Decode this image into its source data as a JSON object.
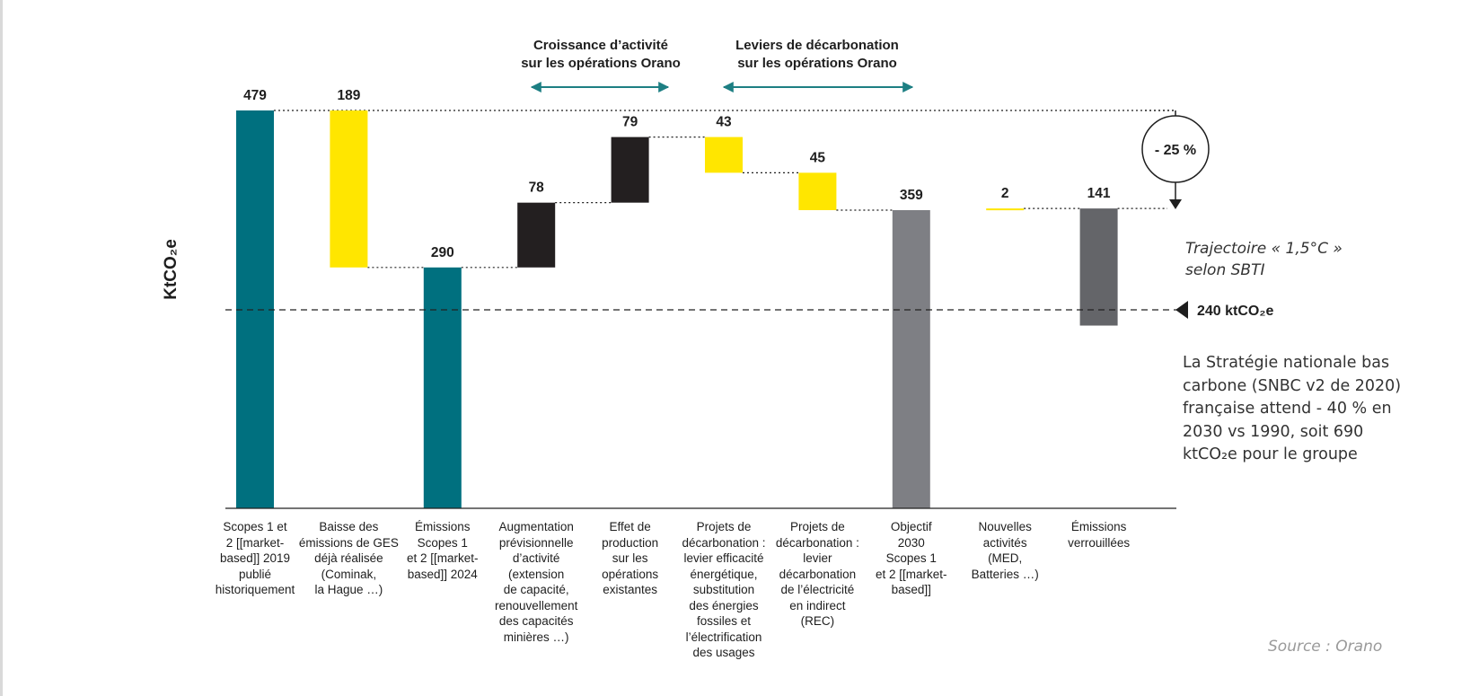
{
  "colors": {
    "teal": "#00707f",
    "yellow": "#ffe600",
    "black": "#231f20",
    "gray": "#7e7f84",
    "darkgray": "#646569",
    "arrowTeal": "#1d7f83"
  },
  "chart_data": {
    "type": "waterfall",
    "ylabel": "KtCO₂e",
    "series": [
      {
        "id": "scopes-2019",
        "value": 479,
        "label": "479",
        "base": 0,
        "top": 479,
        "color": "teal"
      },
      {
        "id": "baisse-ges",
        "value": 189,
        "label": "189",
        "base": 290,
        "top": 479,
        "color": "yellow"
      },
      {
        "id": "emissions-2024",
        "value": 290,
        "label": "290",
        "base": 0,
        "top": 290,
        "color": "teal"
      },
      {
        "id": "augmentation-activite",
        "value": 78,
        "label": "78",
        "base": 290,
        "top": 368,
        "color": "black"
      },
      {
        "id": "effet-production",
        "value": 79,
        "label": "79",
        "base": 368,
        "top": 447,
        "color": "black"
      },
      {
        "id": "efficacite-energetique",
        "value": 43,
        "label": "43",
        "base": 404,
        "top": 447,
        "color": "yellow"
      },
      {
        "id": "electricite-indirect",
        "value": 45,
        "label": "45",
        "base": 359,
        "top": 404,
        "color": "yellow"
      },
      {
        "id": "objectif-2030",
        "value": 359,
        "label": "359",
        "base": 0,
        "top": 359,
        "color": "gray"
      },
      {
        "id": "nouvelles-activites",
        "value": 2,
        "label": "2",
        "base": 359,
        "top": 361,
        "color": "yellow"
      },
      {
        "id": "emissions-verrouillees",
        "value": 141,
        "label": "141",
        "base": 220,
        "top": 361,
        "color": "darkgray"
      }
    ],
    "categories": [
      [
        "Scopes 1 et",
        "2 [[market-",
        "based]] 2019",
        "publié",
        "historiquement"
      ],
      [
        "Baisse des",
        "émissions de GES",
        "déjà réalisée",
        "(Cominak,",
        "la Hague …)"
      ],
      [
        "Émissions",
        "Scopes 1",
        "et 2 [[market-",
        "based]] 2024"
      ],
      [
        "Augmentation",
        "prévisionnelle",
        "d’activité",
        "(extension",
        "de capacité,",
        "renouvellement",
        "des capacités",
        "minières …)"
      ],
      [
        "Effet de",
        "production",
        "sur les",
        "opérations",
        "existantes"
      ],
      [
        "Projets de",
        "décarbonation :",
        "levier efficacité",
        "énergétique,",
        "substitution",
        "des énergies",
        "fossiles et",
        "l’électrification",
        "des usages"
      ],
      [
        "Projets de",
        "décarbonation :",
        "levier",
        "décarbonation",
        "de l’électricité",
        "en indirect",
        "(REC)"
      ],
      [
        "Objectif",
        "2030",
        "Scopes 1",
        "et 2 [[market-",
        "based]]"
      ],
      [
        "Nouvelles",
        "activités",
        "(MED,",
        "Batteries …)"
      ],
      [
        "Émissions",
        "verrouillées"
      ]
    ],
    "annotations": {
      "growth_header": [
        "Croissance d’activité",
        "sur les opérations Orano"
      ],
      "levers_header": [
        "Leviers de décarbonation",
        "sur les opérations Orano"
      ],
      "reduction_badge": "- 25 %",
      "target_line_value": 240,
      "target_line_label": "240 ktCO₂e"
    },
    "ylim": [
      0,
      479
    ]
  },
  "side_text": {
    "trajectory": [
      "Trajectoire « 1,5°C »",
      "selon SBTI"
    ],
    "snbc": [
      "La Stratégie nationale bas",
      "carbone (SNBC v2 de 2020)",
      "française attend - 40 % en",
      "2030 vs 1990, soit 690",
      "ktCO₂e pour le groupe"
    ],
    "source": "Source : Orano"
  }
}
